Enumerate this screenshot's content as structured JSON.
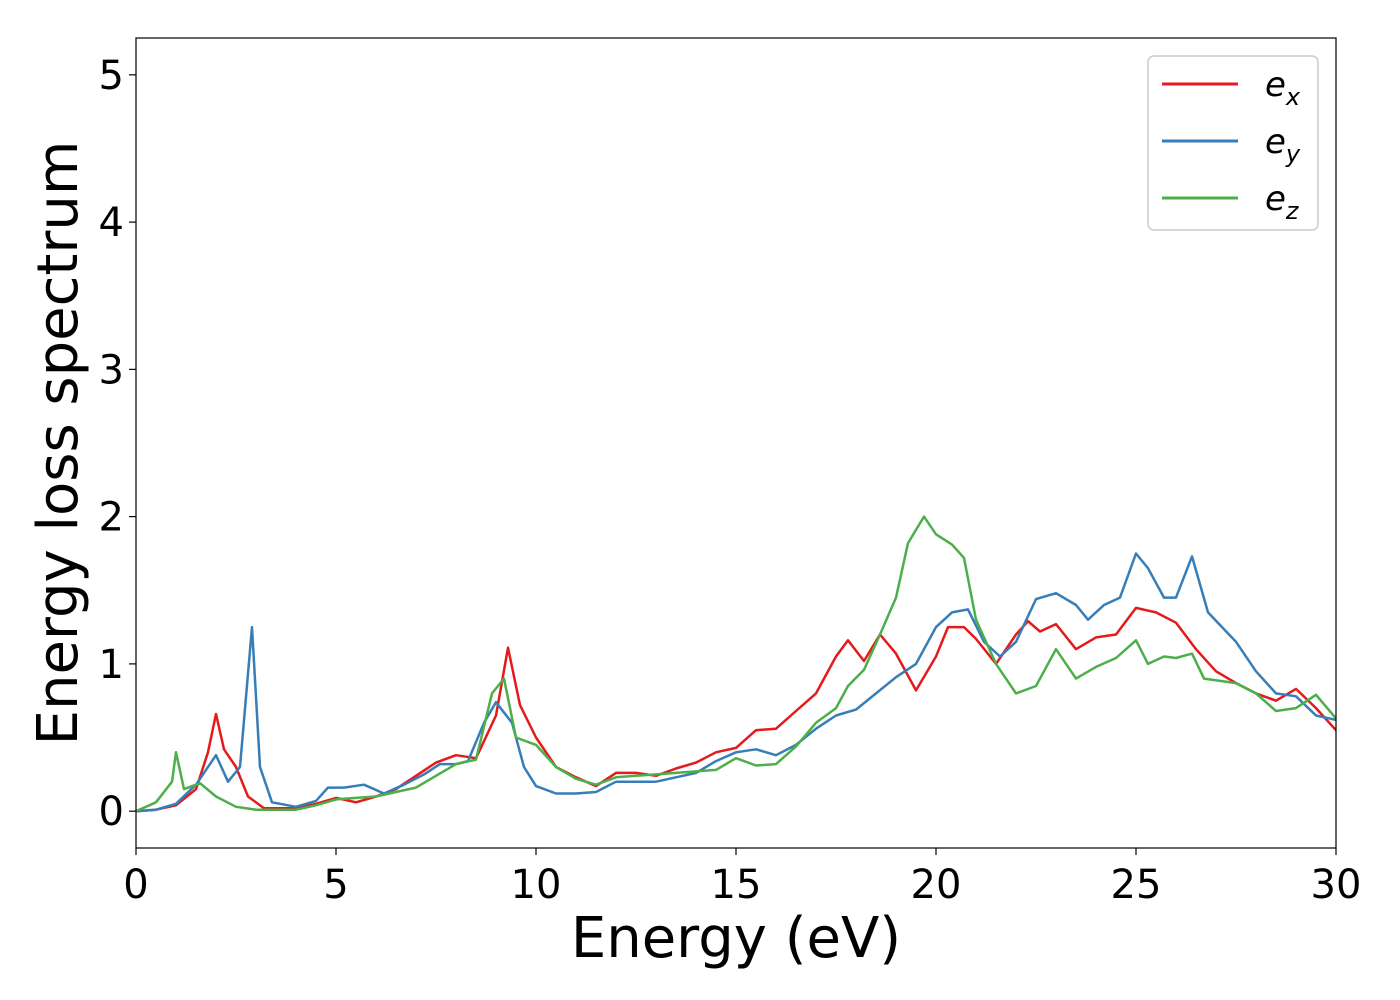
{
  "chart_data": {
    "type": "line",
    "xlabel": "Energy (eV)",
    "ylabel": "Energy loss spectrum",
    "xlim": [
      0,
      30
    ],
    "ylim": [
      -0.25,
      5.25
    ],
    "x_ticks": [
      0,
      5,
      10,
      15,
      20,
      25,
      30
    ],
    "y_ticks": [
      0,
      1,
      2,
      3,
      4,
      5
    ],
    "grid": false,
    "legend_position": "top-right",
    "series": [
      {
        "name": "e_x",
        "legend_base": "e",
        "legend_sub": "x",
        "color": "#e41a1c",
        "points": [
          [
            0,
            0
          ],
          [
            0.5,
            0.01
          ],
          [
            1,
            0.04
          ],
          [
            1.5,
            0.15
          ],
          [
            1.8,
            0.4
          ],
          [
            2,
            0.66
          ],
          [
            2.2,
            0.42
          ],
          [
            2.5,
            0.3
          ],
          [
            2.8,
            0.1
          ],
          [
            3.2,
            0.02
          ],
          [
            4,
            0.02
          ],
          [
            4.5,
            0.05
          ],
          [
            5,
            0.09
          ],
          [
            5.5,
            0.06
          ],
          [
            6,
            0.1
          ],
          [
            6.5,
            0.15
          ],
          [
            7,
            0.24
          ],
          [
            7.5,
            0.33
          ],
          [
            8,
            0.38
          ],
          [
            8.5,
            0.36
          ],
          [
            9,
            0.65
          ],
          [
            9.3,
            1.11
          ],
          [
            9.6,
            0.72
          ],
          [
            10,
            0.5
          ],
          [
            10.5,
            0.3
          ],
          [
            11,
            0.23
          ],
          [
            11.5,
            0.17
          ],
          [
            12,
            0.26
          ],
          [
            12.5,
            0.26
          ],
          [
            13,
            0.24
          ],
          [
            13.5,
            0.29
          ],
          [
            14,
            0.33
          ],
          [
            14.5,
            0.4
          ],
          [
            15,
            0.43
          ],
          [
            15.5,
            0.55
          ],
          [
            16,
            0.56
          ],
          [
            16.5,
            0.68
          ],
          [
            17,
            0.8
          ],
          [
            17.5,
            1.05
          ],
          [
            17.8,
            1.16
          ],
          [
            18.2,
            1.02
          ],
          [
            18.6,
            1.2
          ],
          [
            19,
            1.07
          ],
          [
            19.5,
            0.82
          ],
          [
            20,
            1.05
          ],
          [
            20.3,
            1.25
          ],
          [
            20.7,
            1.25
          ],
          [
            21,
            1.17
          ],
          [
            21.5,
            1.0
          ],
          [
            22,
            1.2
          ],
          [
            22.3,
            1.29
          ],
          [
            22.6,
            1.22
          ],
          [
            23,
            1.27
          ],
          [
            23.5,
            1.1
          ],
          [
            24,
            1.18
          ],
          [
            24.5,
            1.2
          ],
          [
            25,
            1.38
          ],
          [
            25.5,
            1.35
          ],
          [
            26,
            1.28
          ],
          [
            26.5,
            1.1
          ],
          [
            27,
            0.95
          ],
          [
            27.5,
            0.87
          ],
          [
            28,
            0.8
          ],
          [
            28.5,
            0.75
          ],
          [
            29,
            0.83
          ],
          [
            29.5,
            0.7
          ],
          [
            30,
            0.55
          ]
        ]
      },
      {
        "name": "e_y",
        "legend_base": "e",
        "legend_sub": "y",
        "color": "#377eb8",
        "points": [
          [
            0,
            0
          ],
          [
            0.5,
            0.01
          ],
          [
            1,
            0.05
          ],
          [
            1.5,
            0.18
          ],
          [
            2,
            0.38
          ],
          [
            2.3,
            0.2
          ],
          [
            2.6,
            0.3
          ],
          [
            2.9,
            1.25
          ],
          [
            3.1,
            0.3
          ],
          [
            3.4,
            0.06
          ],
          [
            4,
            0.03
          ],
          [
            4.5,
            0.07
          ],
          [
            4.8,
            0.16
          ],
          [
            5.2,
            0.16
          ],
          [
            5.7,
            0.18
          ],
          [
            6.2,
            0.12
          ],
          [
            6.7,
            0.18
          ],
          [
            7.2,
            0.25
          ],
          [
            7.6,
            0.32
          ],
          [
            8,
            0.32
          ],
          [
            8.3,
            0.34
          ],
          [
            8.7,
            0.6
          ],
          [
            9,
            0.74
          ],
          [
            9.4,
            0.6
          ],
          [
            9.7,
            0.3
          ],
          [
            10,
            0.17
          ],
          [
            10.5,
            0.12
          ],
          [
            11,
            0.12
          ],
          [
            11.5,
            0.13
          ],
          [
            12,
            0.2
          ],
          [
            12.5,
            0.2
          ],
          [
            13,
            0.2
          ],
          [
            13.5,
            0.23
          ],
          [
            14,
            0.26
          ],
          [
            14.5,
            0.34
          ],
          [
            15,
            0.4
          ],
          [
            15.5,
            0.42
          ],
          [
            16,
            0.38
          ],
          [
            16.5,
            0.45
          ],
          [
            17,
            0.56
          ],
          [
            17.5,
            0.65
          ],
          [
            18,
            0.69
          ],
          [
            18.5,
            0.8
          ],
          [
            19,
            0.91
          ],
          [
            19.5,
            1.0
          ],
          [
            20,
            1.25
          ],
          [
            20.4,
            1.35
          ],
          [
            20.8,
            1.37
          ],
          [
            21.2,
            1.15
          ],
          [
            21.6,
            1.05
          ],
          [
            22,
            1.15
          ],
          [
            22.5,
            1.44
          ],
          [
            23,
            1.48
          ],
          [
            23.5,
            1.4
          ],
          [
            23.8,
            1.3
          ],
          [
            24.2,
            1.4
          ],
          [
            24.6,
            1.45
          ],
          [
            25,
            1.75
          ],
          [
            25.3,
            1.65
          ],
          [
            25.7,
            1.45
          ],
          [
            26,
            1.45
          ],
          [
            26.4,
            1.73
          ],
          [
            26.8,
            1.35
          ],
          [
            27.5,
            1.15
          ],
          [
            28,
            0.95
          ],
          [
            28.5,
            0.8
          ],
          [
            29,
            0.78
          ],
          [
            29.5,
            0.65
          ],
          [
            30,
            0.62
          ]
        ]
      },
      {
        "name": "e_z",
        "legend_base": "e",
        "legend_sub": "z",
        "color": "#4daf4a",
        "points": [
          [
            0,
            0
          ],
          [
            0.5,
            0.06
          ],
          [
            0.9,
            0.2
          ],
          [
            1.0,
            0.4
          ],
          [
            1.2,
            0.15
          ],
          [
            1.6,
            0.19
          ],
          [
            2,
            0.1
          ],
          [
            2.5,
            0.03
          ],
          [
            3,
            0.01
          ],
          [
            4,
            0.01
          ],
          [
            4.5,
            0.04
          ],
          [
            5,
            0.08
          ],
          [
            5.5,
            0.09
          ],
          [
            6,
            0.1
          ],
          [
            6.5,
            0.13
          ],
          [
            7,
            0.16
          ],
          [
            7.5,
            0.24
          ],
          [
            8,
            0.32
          ],
          [
            8.5,
            0.35
          ],
          [
            8.9,
            0.8
          ],
          [
            9.2,
            0.9
          ],
          [
            9.5,
            0.5
          ],
          [
            10,
            0.45
          ],
          [
            10.5,
            0.3
          ],
          [
            11,
            0.22
          ],
          [
            11.5,
            0.18
          ],
          [
            12,
            0.23
          ],
          [
            12.5,
            0.24
          ],
          [
            13,
            0.25
          ],
          [
            13.5,
            0.26
          ],
          [
            14,
            0.27
          ],
          [
            14.5,
            0.28
          ],
          [
            15,
            0.36
          ],
          [
            15.5,
            0.31
          ],
          [
            16,
            0.32
          ],
          [
            16.5,
            0.44
          ],
          [
            17,
            0.6
          ],
          [
            17.5,
            0.7
          ],
          [
            17.8,
            0.85
          ],
          [
            18.2,
            0.96
          ],
          [
            18.6,
            1.2
          ],
          [
            19,
            1.45
          ],
          [
            19.3,
            1.82
          ],
          [
            19.7,
            2.0
          ],
          [
            20,
            1.88
          ],
          [
            20.4,
            1.81
          ],
          [
            20.7,
            1.72
          ],
          [
            21,
            1.3
          ],
          [
            21.5,
            1.0
          ],
          [
            22,
            0.8
          ],
          [
            22.5,
            0.85
          ],
          [
            23,
            1.1
          ],
          [
            23.5,
            0.9
          ],
          [
            24,
            0.98
          ],
          [
            24.5,
            1.04
          ],
          [
            25,
            1.16
          ],
          [
            25.3,
            1.0
          ],
          [
            25.7,
            1.05
          ],
          [
            26,
            1.04
          ],
          [
            26.4,
            1.07
          ],
          [
            26.7,
            0.9
          ],
          [
            27.5,
            0.87
          ],
          [
            28,
            0.8
          ],
          [
            28.5,
            0.68
          ],
          [
            29,
            0.7
          ],
          [
            29.5,
            0.79
          ],
          [
            30,
            0.63
          ]
        ]
      }
    ]
  }
}
